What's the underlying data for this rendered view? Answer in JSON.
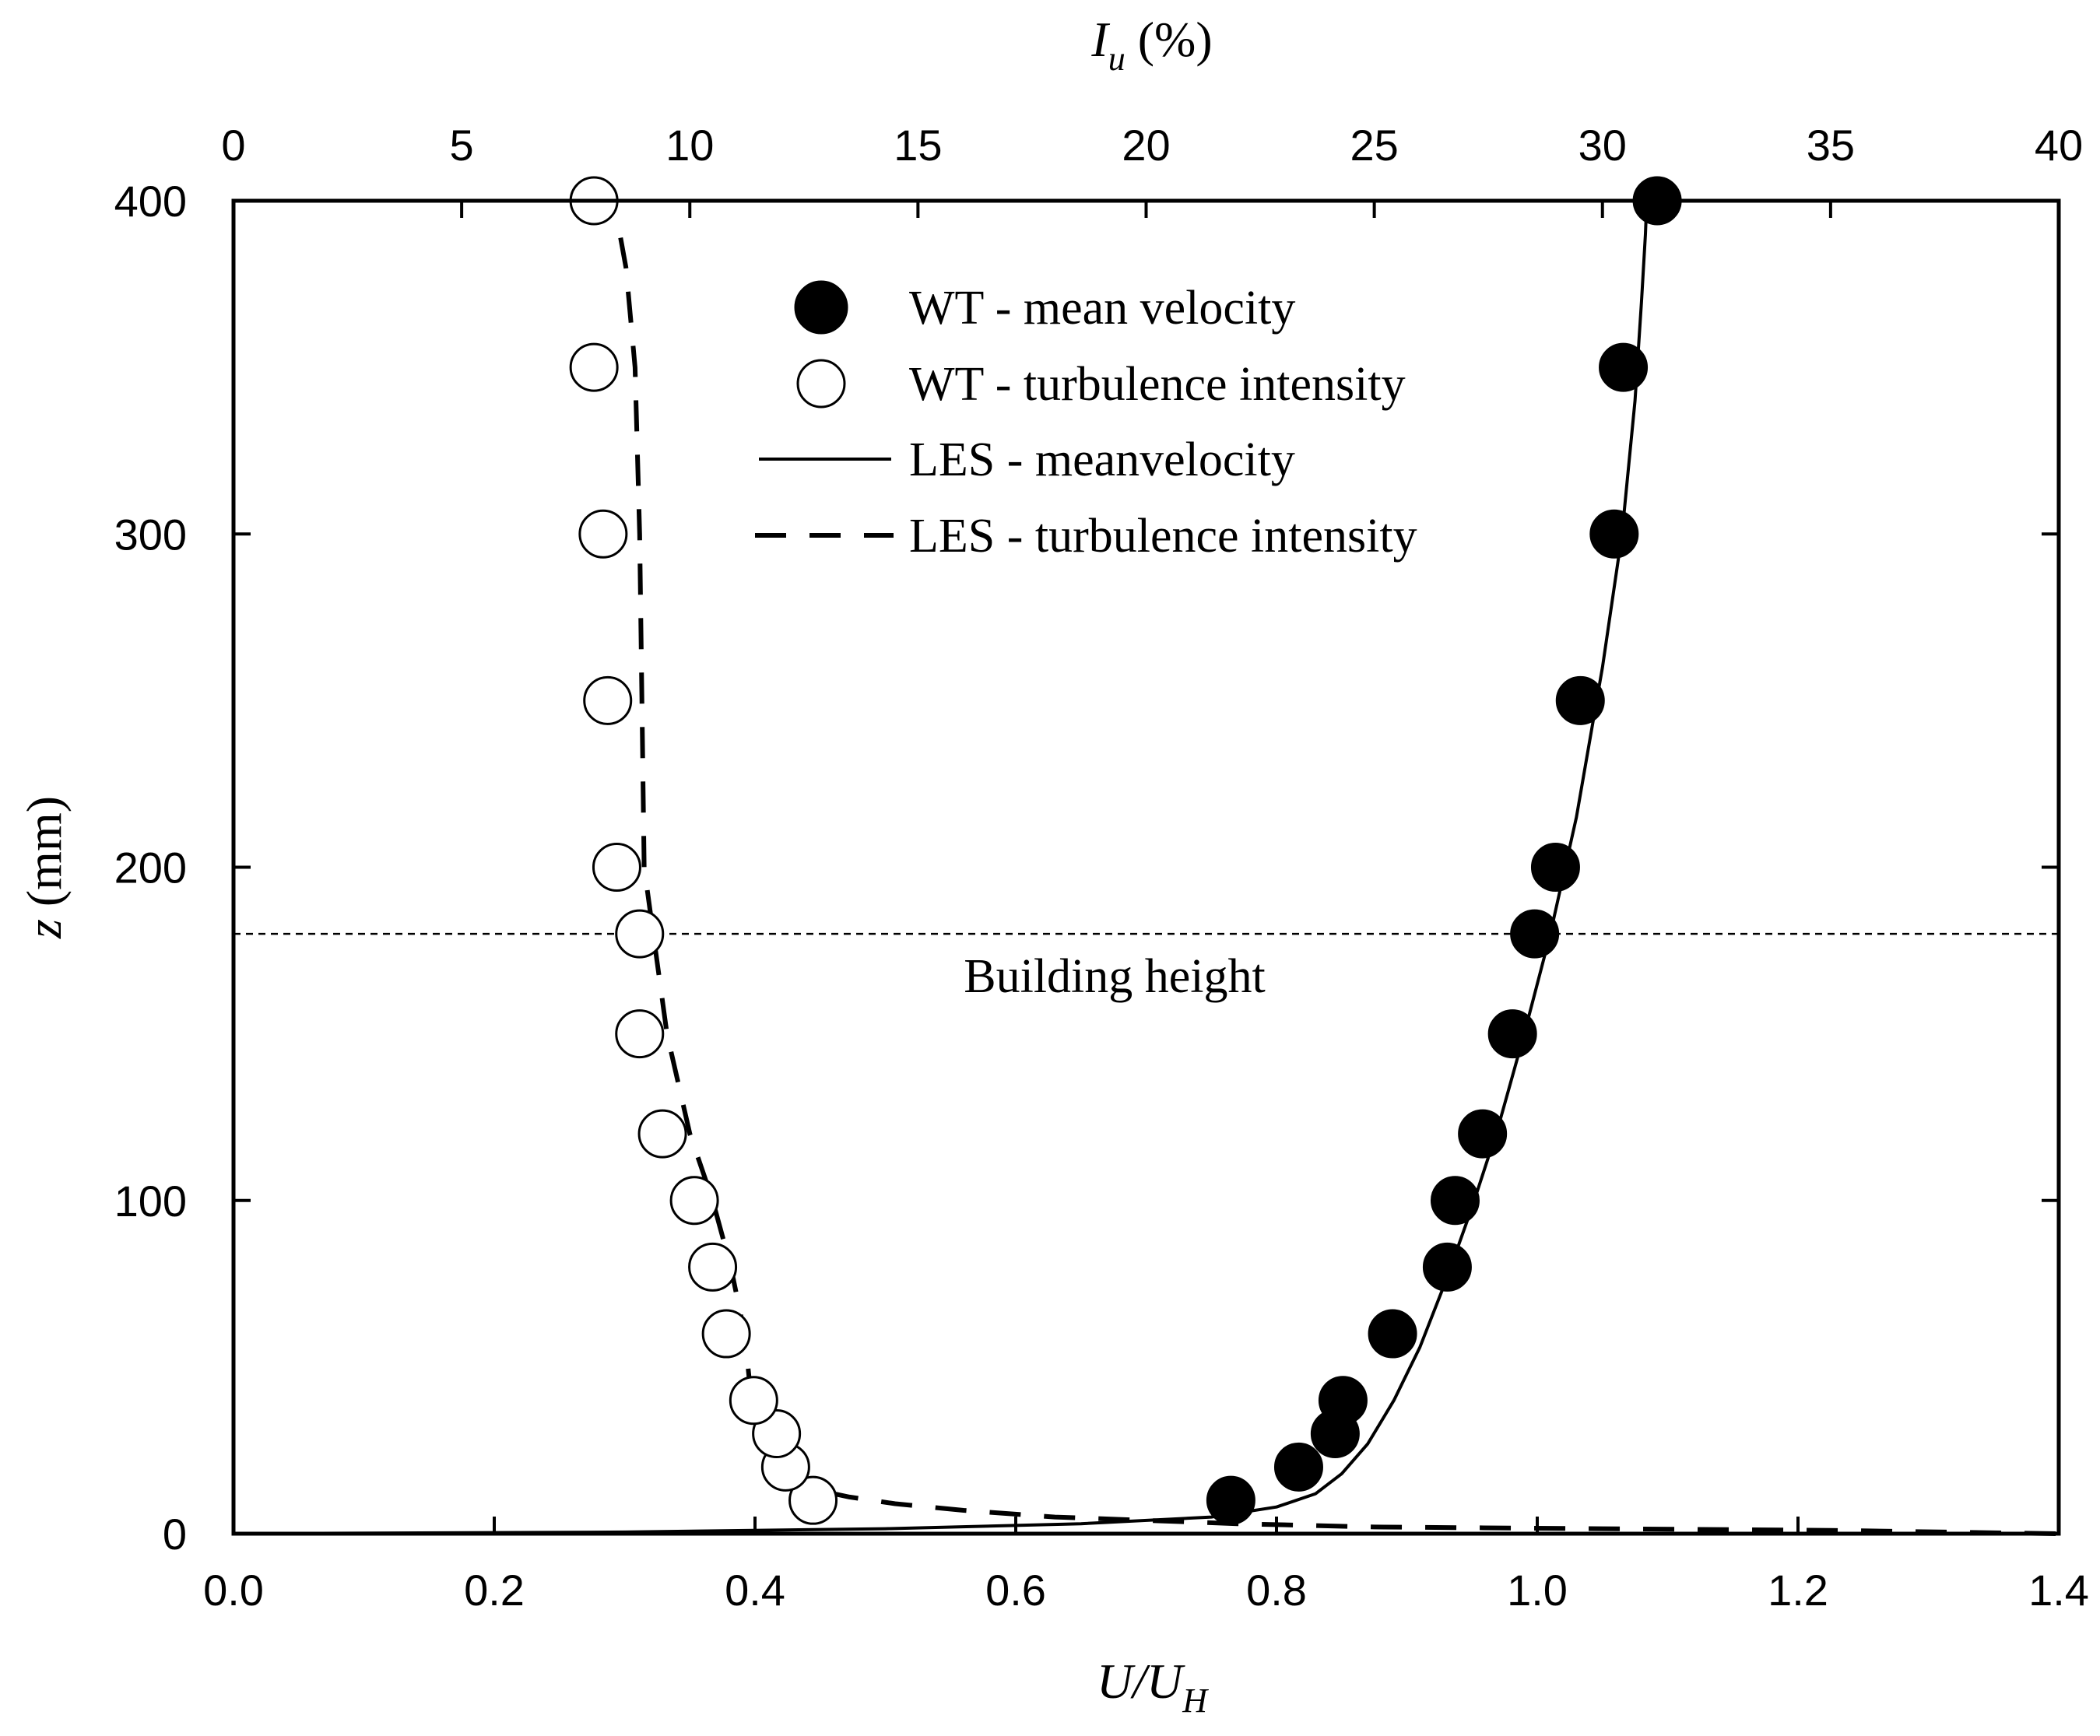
{
  "chart_data": {
    "type": "scatter",
    "title": "",
    "axes": {
      "x_bottom": {
        "label": "U/U",
        "label_sub": "H",
        "range": [
          0.0,
          1.4
        ],
        "ticks": [
          0.0,
          0.2,
          0.4,
          0.6,
          0.8,
          1.0,
          1.2,
          1.4
        ],
        "tick_labels": [
          "0.0",
          "0.2",
          "0.4",
          "0.6",
          "0.8",
          "1.0",
          "1.2",
          "1.4"
        ]
      },
      "x_top": {
        "label": "I",
        "label_sub": "u",
        "label_unit": " (%)",
        "range": [
          0,
          40
        ],
        "ticks": [
          0,
          5,
          10,
          15,
          20,
          25,
          30,
          35,
          40
        ],
        "tick_labels": [
          "0",
          "5",
          "10",
          "15",
          "20",
          "25",
          "30",
          "35",
          "40"
        ]
      },
      "y": {
        "label": "z",
        "label_unit": " (mm)",
        "range": [
          0,
          400
        ],
        "ticks": [
          0,
          100,
          200,
          300,
          400
        ],
        "tick_labels": [
          "0",
          "100",
          "200",
          "300",
          "400"
        ]
      }
    },
    "legend_position": "top-center",
    "series": [
      {
        "name": "WT - mean velocity",
        "kind": "scatter",
        "marker": "filled-circle",
        "axis": "bottom",
        "x": [
          0.765,
          0.817,
          0.845,
          0.851,
          0.889,
          0.931,
          0.937,
          0.958,
          0.981,
          0.998,
          1.014,
          1.033,
          1.059,
          1.066,
          1.092
        ],
        "y": [
          10,
          20,
          30,
          40,
          60,
          80,
          100,
          120,
          150,
          180,
          200,
          250,
          300,
          350,
          400
        ]
      },
      {
        "name": "WT - turbulence intensity",
        "kind": "scatter",
        "marker": "open-circle",
        "axis": "top",
        "x": [
          12.7,
          12.1,
          11.9,
          11.4,
          10.8,
          10.5,
          10.1,
          9.4,
          8.9,
          8.9,
          8.4,
          8.2,
          8.1,
          7.9,
          7.9
        ],
        "y": [
          10,
          20,
          30,
          40,
          60,
          80,
          100,
          120,
          150,
          180,
          200,
          250,
          300,
          350,
          400
        ]
      },
      {
        "name": "LES - meanvelocity",
        "kind": "line",
        "style": "solid",
        "axis": "bottom",
        "x": [
          0.0,
          0.3,
          0.5,
          0.65,
          0.75,
          0.8,
          0.83,
          0.85,
          0.87,
          0.89,
          0.91,
          0.93,
          0.95,
          0.97,
          0.99,
          1.01,
          1.03,
          1.05,
          1.065,
          1.075,
          1.08,
          1.083,
          1.084
        ],
        "y": [
          0,
          0.5,
          1.5,
          3,
          5,
          8,
          12,
          18,
          27,
          40,
          56,
          76,
          98,
          122,
          150,
          180,
          215,
          260,
          300,
          340,
          370,
          390,
          400
        ]
      },
      {
        "name": "LES - turbulence intensity",
        "kind": "line",
        "style": "dashed",
        "axis": "top",
        "x": [
          40,
          35,
          30,
          25,
          22,
          20,
          18,
          16,
          14.5,
          13.5,
          12.8,
          12.3,
          11.9,
          11.6,
          11.5,
          11.35,
          11.2,
          10.9,
          10.5,
          10.0,
          9.5,
          9.2,
          9.0,
          8.95,
          8.9,
          8.8,
          8.6,
          8.4
        ],
        "y": [
          0,
          1,
          1.5,
          2,
          3,
          4,
          5,
          7,
          9,
          11,
          13,
          15,
          20,
          25,
          30,
          40,
          60,
          80,
          100,
          120,
          150,
          180,
          200,
          250,
          300,
          350,
          380,
          395
        ]
      }
    ],
    "reference_lines": [
      {
        "orientation": "horizontal",
        "y": 180,
        "style": "dotted",
        "label": "Building height"
      }
    ],
    "annotations": [
      "Building height"
    ]
  }
}
